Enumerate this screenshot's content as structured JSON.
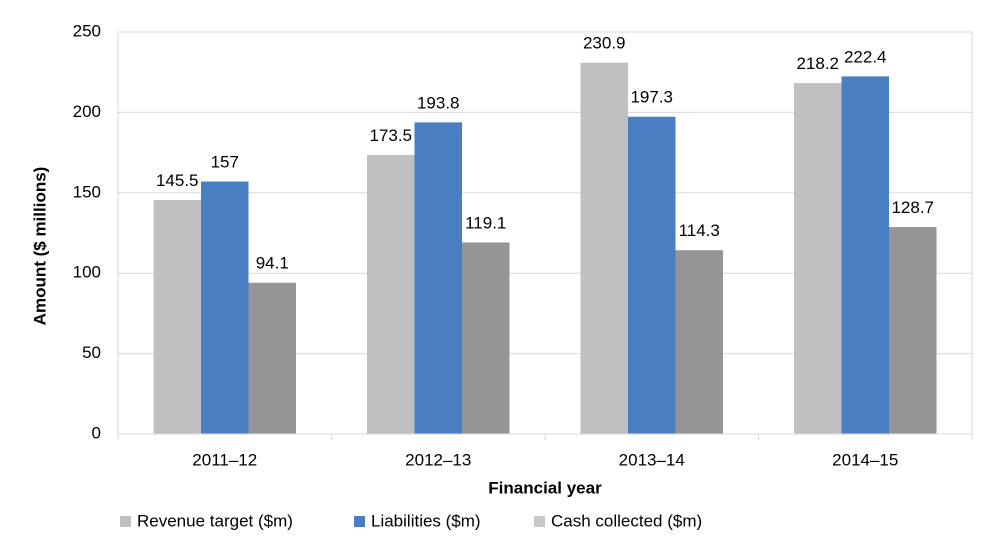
{
  "chart_data": {
    "type": "bar",
    "title": "",
    "xlabel": "Financial year",
    "ylabel": "Amount ($ millions)",
    "categories": [
      "2011–12",
      "2012–13",
      "2013–14",
      "2014–15"
    ],
    "ylim": [
      0,
      250
    ],
    "yticks": [
      0,
      50,
      100,
      150,
      200,
      250
    ],
    "grid": true,
    "legend_position": "bottom",
    "series": [
      {
        "name": "Revenue target ($m)",
        "color": "#c0c0c0",
        "values": [
          145.5,
          173.5,
          230.9,
          218.2
        ],
        "labels": [
          "145.5",
          "173.5",
          "230.9",
          "218.2"
        ]
      },
      {
        "name": "Liabilities ($m)",
        "color": "#4a7ec2",
        "values": [
          157,
          193.8,
          197.3,
          222.4
        ],
        "labels": [
          "157",
          "193.8",
          "197.3",
          "222.4"
        ]
      },
      {
        "name": "Cash collected ($m)",
        "color": "#959595",
        "values": [
          94.1,
          119.1,
          114.3,
          128.7
        ],
        "labels": [
          "94.1",
          "119.1",
          "114.3",
          "128.7"
        ]
      }
    ],
    "legend_swatch_colors": [
      "#c0c0c0",
      "#4a7ec2",
      "#c8c8c8"
    ]
  }
}
